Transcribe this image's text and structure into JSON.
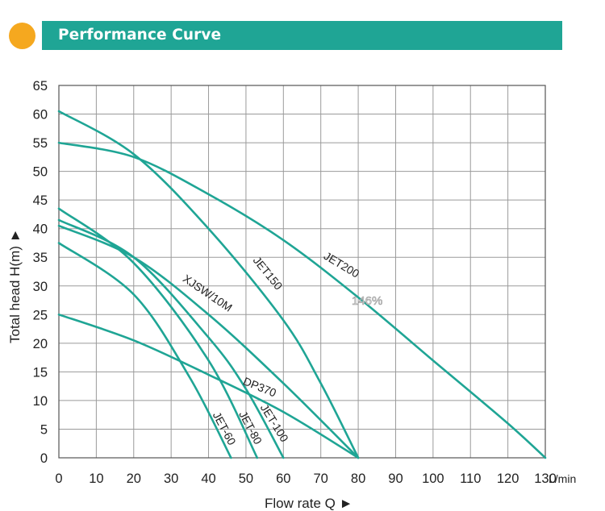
{
  "header": {
    "title": "Performance Curve"
  },
  "colors": {
    "curve": "#1fa595",
    "header_bar": "#1fa595",
    "header_dot": "#f5a81f",
    "grid": "#9a9a9a"
  },
  "chart_data": {
    "type": "line",
    "title": "Performance Curve",
    "xlabel": "Flow rate Q ►",
    "ylabel": "Total head H(m) ►",
    "xunit": "L/min",
    "xlim": [
      0,
      130
    ],
    "ylim": [
      0,
      65
    ],
    "xticks": [
      0,
      10,
      20,
      30,
      40,
      50,
      60,
      70,
      80,
      90,
      100,
      110,
      120,
      130
    ],
    "yticks": [
      0,
      5,
      10,
      15,
      20,
      25,
      30,
      35,
      40,
      45,
      50,
      55,
      60,
      65
    ],
    "grid": true,
    "annotation": "146%",
    "series": [
      {
        "name": "JET200",
        "x": [
          0,
          20,
          40,
          60,
          80,
          100,
          120,
          130
        ],
        "y": [
          55,
          52.5,
          46,
          38,
          28,
          17,
          6,
          0
        ]
      },
      {
        "name": "JET150",
        "x": [
          0,
          20,
          40,
          60,
          70,
          80
        ],
        "y": [
          60.5,
          53,
          40,
          24,
          13,
          0
        ]
      },
      {
        "name": "XJSW/10M",
        "x": [
          0,
          20,
          40,
          60,
          80
        ],
        "y": [
          40.5,
          35,
          25,
          13,
          0
        ]
      },
      {
        "name": "DP370",
        "x": [
          0,
          20,
          40,
          60,
          80
        ],
        "y": [
          25,
          20.5,
          14.5,
          8,
          0
        ]
      },
      {
        "name": "JET-100",
        "x": [
          0,
          20,
          40,
          50,
          60
        ],
        "y": [
          41.5,
          35,
          21,
          12,
          0
        ]
      },
      {
        "name": "JET-80",
        "x": [
          0,
          20,
          40,
          53
        ],
        "y": [
          43.5,
          34,
          17,
          0
        ]
      },
      {
        "name": "JET-60",
        "x": [
          0,
          20,
          35,
          46
        ],
        "y": [
          37.5,
          28.5,
          14,
          0
        ]
      }
    ]
  }
}
